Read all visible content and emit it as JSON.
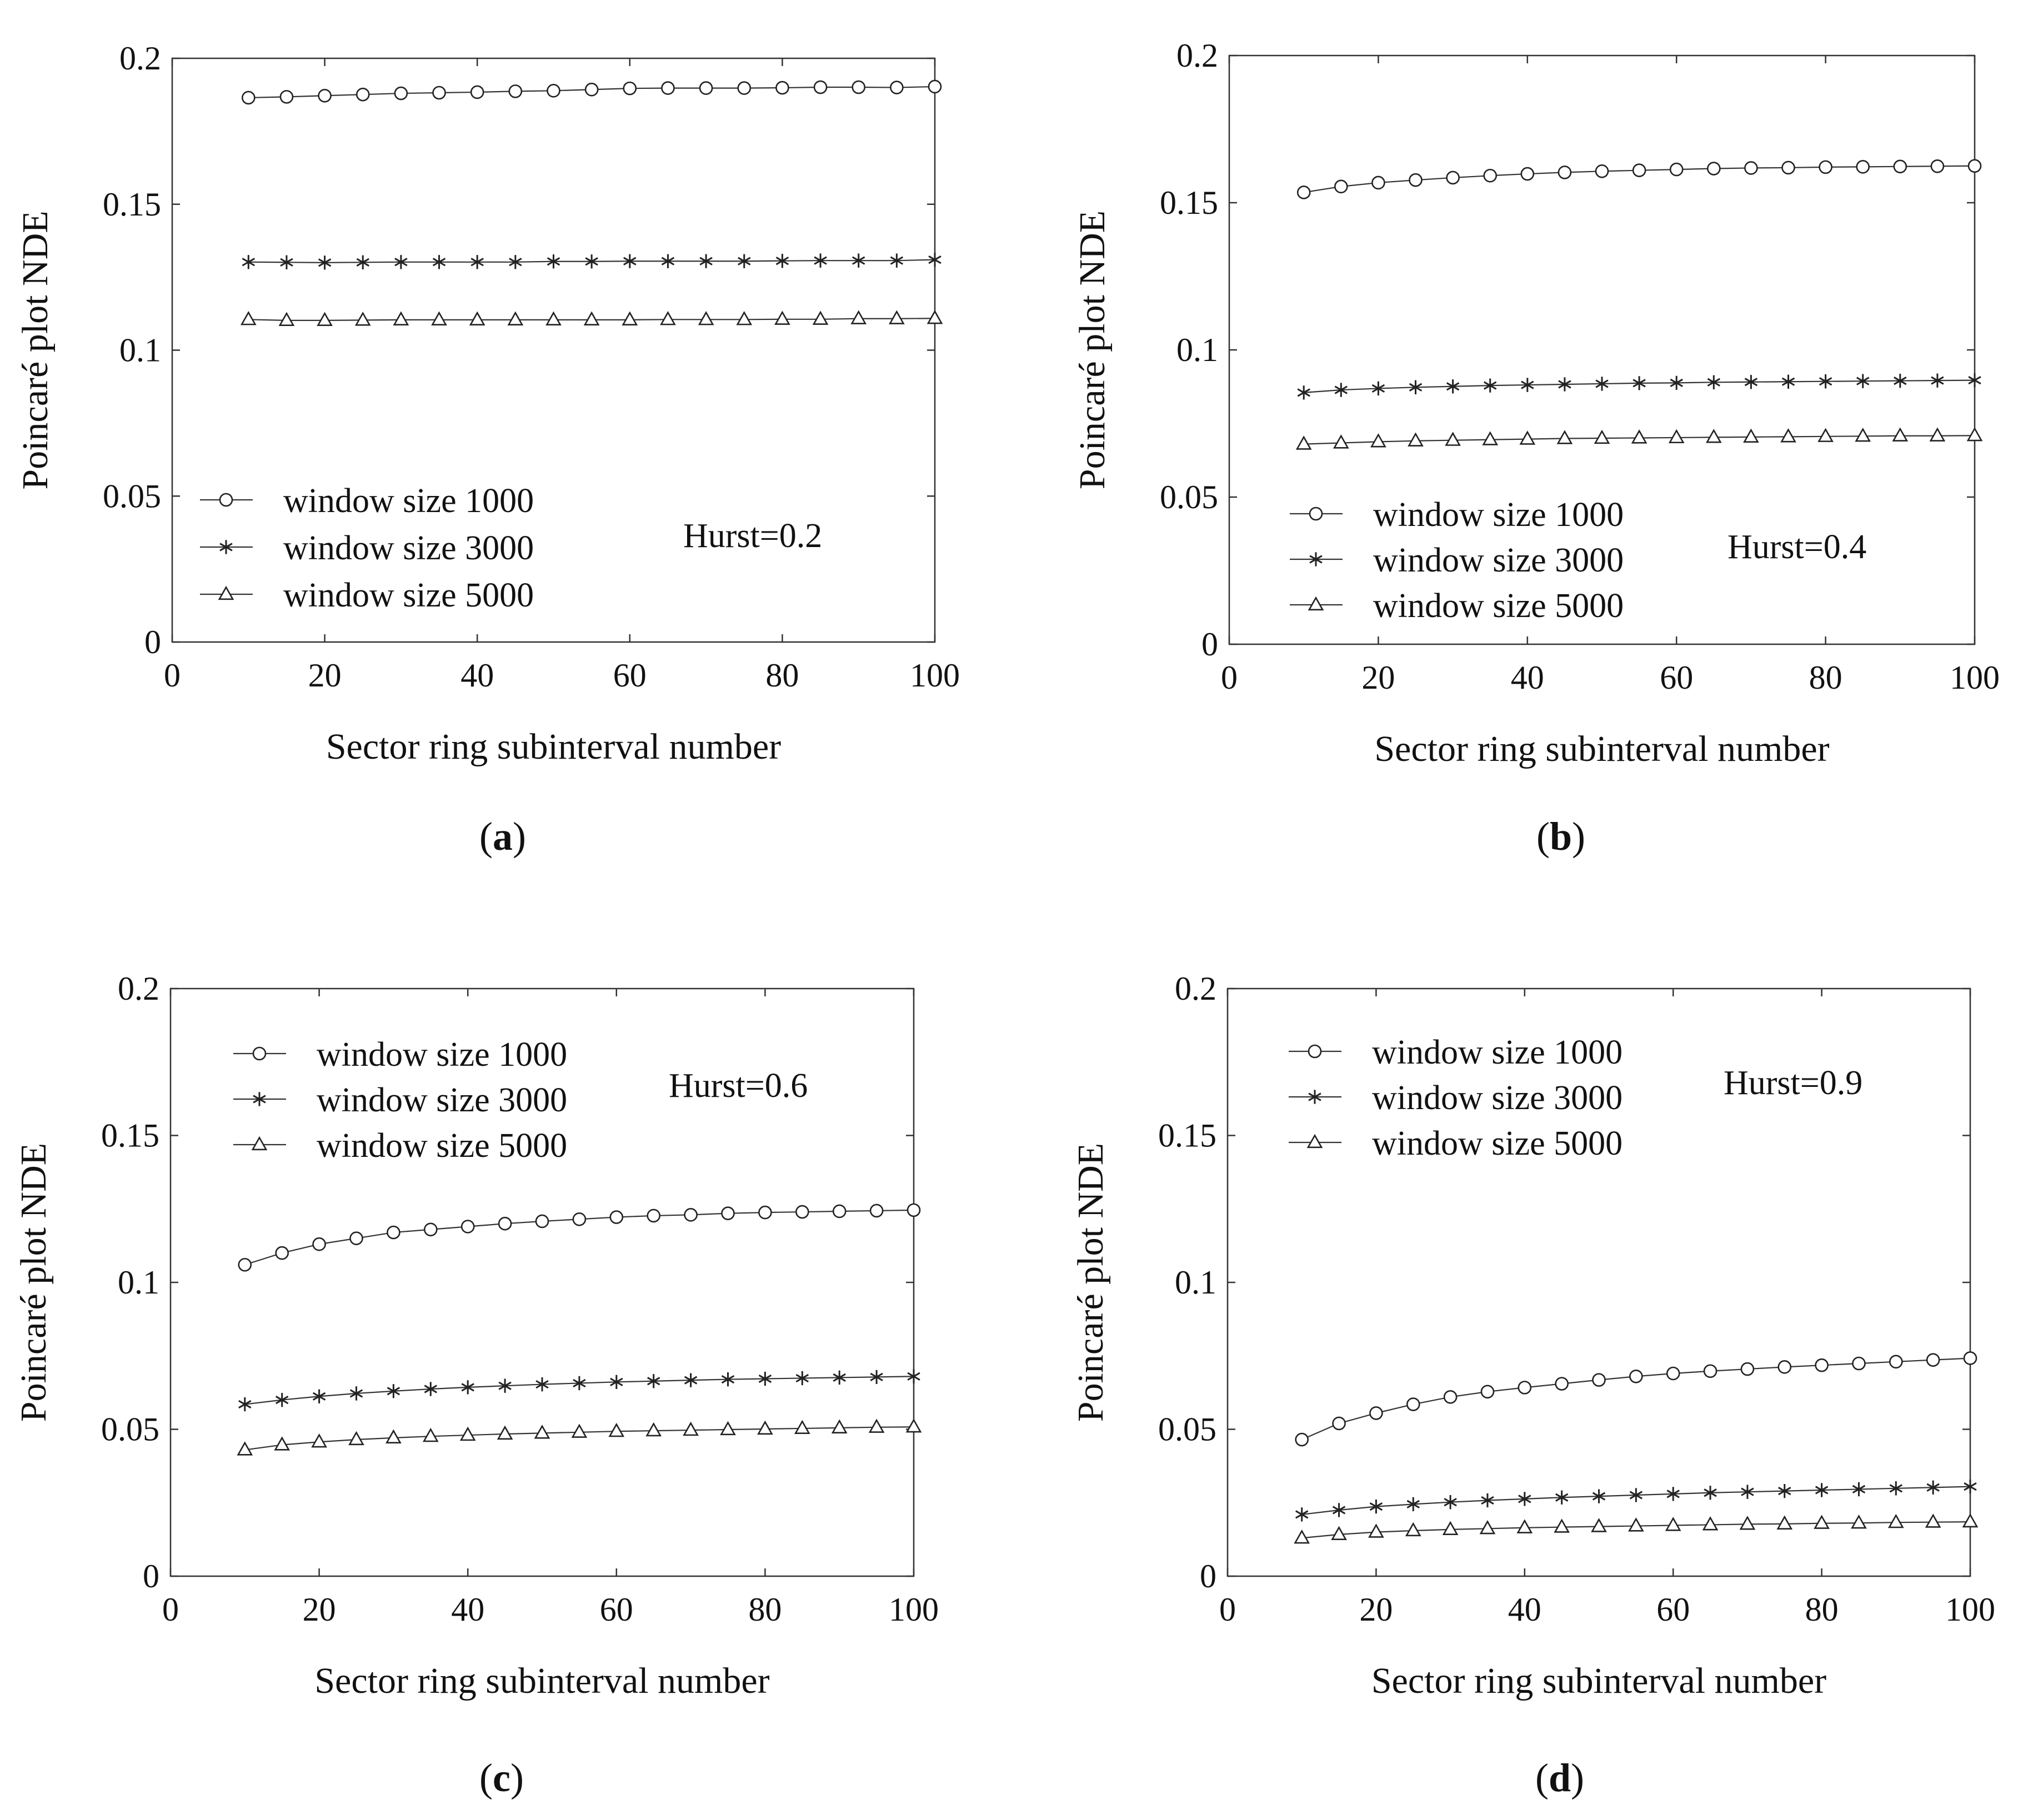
{
  "chart_data": [
    {
      "panel": "(a)",
      "panel_letter": "a",
      "type": "line",
      "xlabel": "Sector ring subinterval number",
      "ylabel": "Poincaré plot NDE",
      "xlim": [
        0,
        100
      ],
      "ylim": [
        0,
        0.2
      ],
      "xticks": [
        "0",
        "20",
        "40",
        "60",
        "80",
        "100"
      ],
      "yticks": [
        "0",
        "0.05",
        "0.1",
        "0.15",
        "0.2"
      ],
      "legend_position": "bottom-left",
      "annotation": "Hurst=0.2",
      "x": [
        10,
        15,
        20,
        25,
        30,
        35,
        40,
        45,
        50,
        55,
        60,
        65,
        70,
        75,
        80,
        85,
        90,
        95,
        100
      ],
      "series": [
        {
          "name": "window size 1000",
          "marker": "circle",
          "values": [
            0.1865,
            0.1868,
            0.1872,
            0.1876,
            0.188,
            0.1882,
            0.1884,
            0.1887,
            0.1889,
            0.1893,
            0.1897,
            0.1898,
            0.1898,
            0.1898,
            0.1899,
            0.1901,
            0.1901,
            0.19,
            0.1903
          ]
        },
        {
          "name": "window size 3000",
          "marker": "asterisk",
          "values": [
            0.1302,
            0.1301,
            0.13,
            0.1301,
            0.1302,
            0.1302,
            0.1302,
            0.1302,
            0.1304,
            0.1304,
            0.1305,
            0.1305,
            0.1305,
            0.1305,
            0.1306,
            0.1307,
            0.1307,
            0.1307,
            0.131
          ]
        },
        {
          "name": "window size 5000",
          "marker": "triangle",
          "values": [
            0.1105,
            0.1102,
            0.1102,
            0.1103,
            0.1104,
            0.1104,
            0.1104,
            0.1104,
            0.1104,
            0.1104,
            0.1104,
            0.1105,
            0.1105,
            0.1105,
            0.1106,
            0.1106,
            0.1108,
            0.1108,
            0.1109
          ]
        }
      ]
    },
    {
      "panel": "(b)",
      "panel_letter": "b",
      "type": "line",
      "xlabel": "Sector ring subinterval number",
      "ylabel": "Poincaré plot NDE",
      "xlim": [
        0,
        100
      ],
      "ylim": [
        0,
        0.2
      ],
      "xticks": [
        "0",
        "20",
        "40",
        "60",
        "80",
        "100"
      ],
      "yticks": [
        "0",
        "0.05",
        "0.1",
        "0.15",
        "0.2"
      ],
      "legend_position": "bottom-left",
      "annotation": "Hurst=0.4",
      "x": [
        10,
        15,
        20,
        25,
        30,
        35,
        40,
        45,
        50,
        55,
        60,
        65,
        70,
        75,
        80,
        85,
        90,
        95,
        100
      ],
      "series": [
        {
          "name": "window size 1000",
          "marker": "circle",
          "values": [
            0.1535,
            0.1555,
            0.1568,
            0.1577,
            0.1585,
            0.1592,
            0.1598,
            0.1603,
            0.1607,
            0.161,
            0.1613,
            0.1616,
            0.1618,
            0.1619,
            0.1621,
            0.1622,
            0.1623,
            0.1624,
            0.1625
          ]
        },
        {
          "name": "window size 3000",
          "marker": "asterisk",
          "values": [
            0.0855,
            0.0864,
            0.0869,
            0.0873,
            0.0876,
            0.0879,
            0.0881,
            0.0883,
            0.0885,
            0.0887,
            0.0888,
            0.089,
            0.0891,
            0.0892,
            0.0893,
            0.0894,
            0.0895,
            0.0896,
            0.0897
          ]
        },
        {
          "name": "window size 5000",
          "marker": "triangle",
          "values": [
            0.068,
            0.0684,
            0.0688,
            0.0691,
            0.0693,
            0.0695,
            0.0697,
            0.0699,
            0.07,
            0.0701,
            0.0702,
            0.0703,
            0.0704,
            0.0705,
            0.0706,
            0.0707,
            0.0708,
            0.0708,
            0.0709
          ]
        }
      ]
    },
    {
      "panel": "(c)",
      "panel_letter": "c",
      "type": "line",
      "xlabel": "Sector ring subinterval number",
      "ylabel": "Poincaré plot NDE",
      "xlim": [
        0,
        100
      ],
      "ylim": [
        0,
        0.2
      ],
      "xticks": [
        "0",
        "20",
        "40",
        "60",
        "80",
        "100"
      ],
      "yticks": [
        "0",
        "0.05",
        "0.1",
        "0.15",
        "0.2"
      ],
      "legend_position": "top-left",
      "annotation": "Hurst=0.6",
      "x": [
        10,
        15,
        20,
        25,
        30,
        35,
        40,
        45,
        50,
        55,
        60,
        65,
        70,
        75,
        80,
        85,
        90,
        95,
        100
      ],
      "series": [
        {
          "name": "window size 1000",
          "marker": "circle",
          "values": [
            0.106,
            0.11,
            0.113,
            0.115,
            0.117,
            0.118,
            0.119,
            0.12,
            0.1208,
            0.1215,
            0.1222,
            0.1227,
            0.123,
            0.1235,
            0.1238,
            0.124,
            0.1242,
            0.1244,
            0.1246
          ]
        },
        {
          "name": "window size 3000",
          "marker": "asterisk",
          "values": [
            0.0585,
            0.06,
            0.0612,
            0.0622,
            0.063,
            0.0637,
            0.0643,
            0.0648,
            0.0653,
            0.0657,
            0.0661,
            0.0664,
            0.0667,
            0.067,
            0.0672,
            0.0674,
            0.0676,
            0.0678,
            0.068
          ]
        },
        {
          "name": "window size 5000",
          "marker": "triangle",
          "values": [
            0.043,
            0.0447,
            0.0457,
            0.0465,
            0.0471,
            0.0476,
            0.048,
            0.0484,
            0.0487,
            0.049,
            0.0493,
            0.0495,
            0.0497,
            0.0499,
            0.0501,
            0.0503,
            0.0505,
            0.0507,
            0.0508
          ]
        }
      ]
    },
    {
      "panel": "(d)",
      "panel_letter": "d",
      "type": "line",
      "xlabel": "Sector ring subinterval number",
      "ylabel": "Poincaré plot NDE",
      "xlim": [
        0,
        100
      ],
      "ylim": [
        0,
        0.2
      ],
      "xticks": [
        "0",
        "20",
        "40",
        "60",
        "80",
        "100"
      ],
      "yticks": [
        "0",
        "0.05",
        "0.1",
        "0.15",
        "0.2"
      ],
      "legend_position": "top-left",
      "annotation": "Hurst=0.9",
      "x": [
        10,
        15,
        20,
        25,
        30,
        35,
        40,
        45,
        50,
        55,
        60,
        65,
        70,
        75,
        80,
        85,
        90,
        95,
        100
      ],
      "series": [
        {
          "name": "window size 1000",
          "marker": "circle",
          "values": [
            0.0465,
            0.052,
            0.0555,
            0.0585,
            0.061,
            0.0628,
            0.0642,
            0.0655,
            0.0668,
            0.068,
            0.069,
            0.0698,
            0.0705,
            0.0712,
            0.0718,
            0.0724,
            0.073,
            0.0736,
            0.0742
          ]
        },
        {
          "name": "window size 3000",
          "marker": "asterisk",
          "values": [
            0.021,
            0.0225,
            0.0237,
            0.0245,
            0.0252,
            0.0258,
            0.0263,
            0.0268,
            0.0272,
            0.0276,
            0.028,
            0.0284,
            0.0287,
            0.029,
            0.0293,
            0.0296,
            0.0299,
            0.0302,
            0.0305
          ]
        },
        {
          "name": "window size 5000",
          "marker": "triangle",
          "values": [
            0.013,
            0.0142,
            0.015,
            0.0155,
            0.0159,
            0.0162,
            0.0165,
            0.0167,
            0.0169,
            0.0171,
            0.0173,
            0.0175,
            0.0177,
            0.0178,
            0.018,
            0.0181,
            0.0183,
            0.0184,
            0.0185
          ]
        }
      ]
    }
  ]
}
